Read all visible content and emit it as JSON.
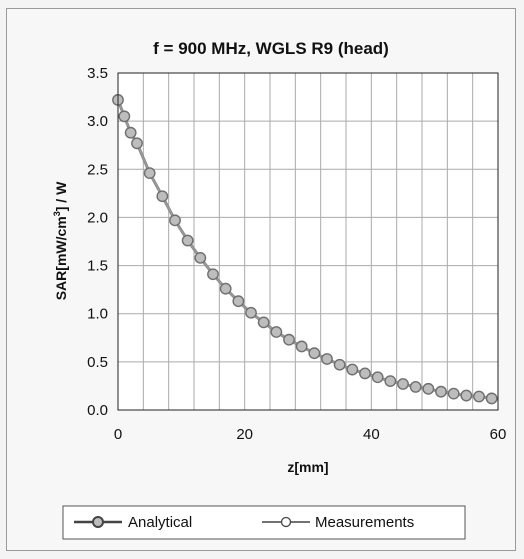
{
  "chart_data": {
    "type": "line",
    "title": "f = 900 MHz, WGLS R9 (head)",
    "xlabel": "z[mm]",
    "ylabel_parts": [
      "SAR[mW/cm",
      "3",
      "] / W"
    ],
    "xlim": [
      0,
      60
    ],
    "ylim": [
      0,
      3.5
    ],
    "x_ticks": [
      0,
      20,
      40,
      60
    ],
    "y_ticks": [
      "0.0",
      "0.5",
      "1.0",
      "1.5",
      "2.0",
      "2.5",
      "3.0",
      "3.5"
    ],
    "grid": true,
    "legend_position": "bottom",
    "colors": {
      "line": "#8a8a8a",
      "marker_fill": "#bdbdbd",
      "marker_edge": "#6f6f6f",
      "grid": "#aaaaaa"
    },
    "series": [
      {
        "name": "Analytical",
        "x": [
          0,
          60
        ],
        "y": [
          3.22,
          0.12
        ]
      },
      {
        "name": "Measurements",
        "x": [
          0,
          1,
          2,
          3,
          5,
          7,
          9,
          11,
          13,
          15,
          17,
          19,
          21,
          23,
          25,
          27,
          29,
          31,
          33,
          35,
          37,
          39,
          41,
          43,
          45,
          47,
          49,
          51,
          53,
          55,
          57,
          59
        ],
        "y": [
          3.22,
          3.05,
          2.88,
          2.77,
          2.46,
          2.22,
          1.97,
          1.76,
          1.58,
          1.41,
          1.26,
          1.13,
          1.01,
          0.91,
          0.81,
          0.73,
          0.66,
          0.59,
          0.53,
          0.47,
          0.42,
          0.38,
          0.34,
          0.3,
          0.27,
          0.24,
          0.22,
          0.19,
          0.17,
          0.15,
          0.14,
          0.12
        ]
      }
    ]
  }
}
